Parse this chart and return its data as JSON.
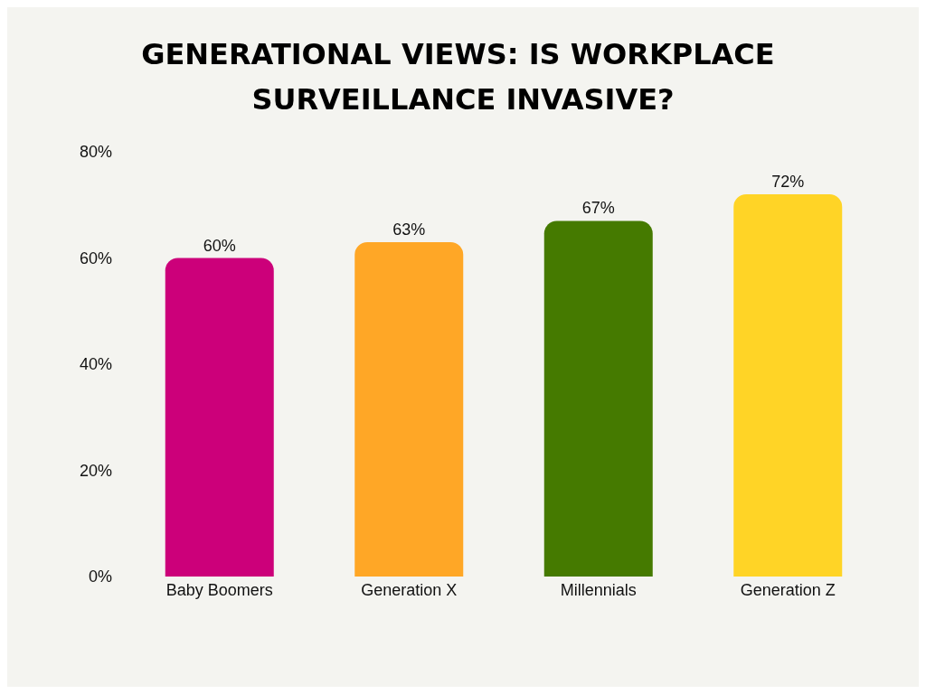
{
  "chart_data": {
    "type": "bar",
    "title": "GENERATIONAL VIEWS: IS WORKPLACE SURVEILLANCE INVASIVE?",
    "categories": [
      "Baby Boomers",
      "Generation X",
      "Millennials",
      "Generation Z"
    ],
    "values": [
      60,
      63,
      67,
      72
    ],
    "colors": [
      "#cc007a",
      "#ffa726",
      "#457a00",
      "#ffd426"
    ],
    "value_labels": [
      "60%",
      "63%",
      "67%",
      "72%"
    ],
    "ylim": [
      0,
      80
    ],
    "yticks": [
      {
        "value": 0,
        "label": "0%"
      },
      {
        "value": 20,
        "label": "20%"
      },
      {
        "value": 40,
        "label": "40%"
      },
      {
        "value": 60,
        "label": "60%"
      },
      {
        "value": 80,
        "label": "80%"
      }
    ],
    "grid": false
  }
}
